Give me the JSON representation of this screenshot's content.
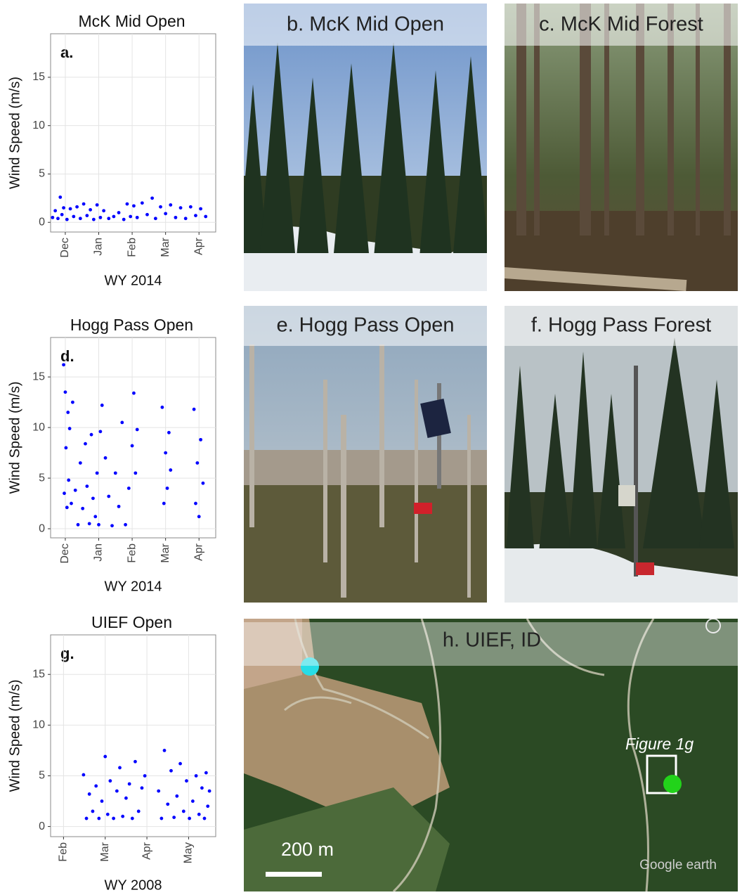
{
  "chart_data": [
    {
      "type": "scatter",
      "title": "McK Mid Open",
      "annotation": "a.",
      "ylabel": "Wind Speed (m/s)",
      "xlabel": "WY 2014",
      "x": [
        0.62,
        0.7,
        0.78,
        0.85,
        0.9,
        0.95,
        1.05,
        1.15,
        1.25,
        1.35,
        1.45,
        1.55,
        1.65,
        1.75,
        1.85,
        1.95,
        2.05,
        2.15,
        2.3,
        2.45,
        2.6,
        2.75,
        2.85,
        2.95,
        3.05,
        3.15,
        3.3,
        3.45,
        3.6,
        3.7,
        3.85,
        4.0,
        4.15,
        4.3,
        4.45,
        4.6,
        4.75,
        4.9,
        5.05,
        5.2
      ],
      "values": [
        0.5,
        1.2,
        0.4,
        2.6,
        0.8,
        1.5,
        0.3,
        1.4,
        0.6,
        1.6,
        0.4,
        1.9,
        0.7,
        1.3,
        0.3,
        1.8,
        0.5,
        1.2,
        0.4,
        0.6,
        1.0,
        0.3,
        1.9,
        0.6,
        1.7,
        0.5,
        2.0,
        0.8,
        2.5,
        0.4,
        1.6,
        0.9,
        1.8,
        0.5,
        1.5,
        0.4,
        1.6,
        0.7,
        1.4,
        0.6
      ],
      "color": "#0000ff",
      "xlim": [
        0.56,
        5.5
      ],
      "ylim": [
        -1,
        19.5
      ],
      "xticks": [
        {
          "value": 1,
          "label": "Dec"
        },
        {
          "value": 2,
          "label": "Jan"
        },
        {
          "value": 3,
          "label": "Feb"
        },
        {
          "value": 4,
          "label": "Mar"
        },
        {
          "value": 5,
          "label": "Apr"
        }
      ],
      "yticks": [
        0,
        5,
        10,
        15
      ],
      "grid": true
    },
    {
      "type": "scatter",
      "title": "Hogg Pass Open",
      "annotation": "d.",
      "ylabel": "Wind Speed (m/s)",
      "xlabel": "WY 2014",
      "x": [
        0.95,
        0.97,
        1.0,
        1.02,
        1.05,
        1.08,
        1.1,
        1.13,
        1.18,
        1.22,
        1.3,
        1.38,
        1.45,
        1.52,
        1.6,
        1.65,
        1.72,
        1.78,
        1.83,
        1.9,
        1.95,
        2.0,
        2.05,
        2.1,
        2.2,
        2.3,
        2.4,
        2.5,
        2.6,
        2.7,
        2.8,
        2.9,
        3.0,
        3.05,
        3.1,
        3.15,
        3.9,
        3.95,
        4.0,
        4.05,
        4.1,
        4.15,
        4.85,
        4.9,
        4.95,
        5.0,
        5.05,
        5.12
      ],
      "values": [
        16.2,
        3.5,
        13.5,
        8.0,
        2.1,
        11.5,
        4.8,
        9.9,
        2.5,
        12.5,
        3.8,
        0.4,
        6.5,
        2.0,
        8.4,
        4.2,
        0.5,
        9.3,
        3.0,
        1.2,
        5.5,
        0.4,
        9.6,
        12.2,
        7.0,
        3.2,
        0.3,
        5.5,
        2.2,
        10.5,
        0.4,
        4.0,
        8.2,
        13.4,
        5.5,
        9.8,
        12.0,
        2.5,
        7.5,
        4.0,
        9.5,
        5.8,
        11.8,
        2.5,
        6.5,
        1.2,
        8.8,
        4.5
      ],
      "color": "#0000ff",
      "xlim": [
        0.56,
        5.5
      ],
      "ylim": [
        -0.9,
        18.9
      ],
      "xticks": [
        {
          "value": 1,
          "label": "Dec"
        },
        {
          "value": 2,
          "label": "Jan"
        },
        {
          "value": 3,
          "label": "Feb"
        },
        {
          "value": 4,
          "label": "Mar"
        },
        {
          "value": 5,
          "label": "Apr"
        }
      ],
      "yticks": [
        0,
        5,
        10,
        15
      ],
      "grid": true
    },
    {
      "type": "scatter",
      "title": "UIEF Open",
      "annotation": "g.",
      "ylabel": "Wind Speed (m/s)",
      "xlabel": "WY 2008",
      "x": [
        1.48,
        1.55,
        1.62,
        1.7,
        1.78,
        1.85,
        1.92,
        2.0,
        2.06,
        2.12,
        2.2,
        2.28,
        2.35,
        2.42,
        2.5,
        2.58,
        2.65,
        2.72,
        2.8,
        2.88,
        2.95,
        3.28,
        3.35,
        3.42,
        3.5,
        3.58,
        3.65,
        3.72,
        3.8,
        3.88,
        3.95,
        4.02,
        4.1,
        4.18,
        4.25,
        4.32,
        4.38,
        4.42,
        4.46,
        4.5
      ],
      "values": [
        5.1,
        0.8,
        3.2,
        1.5,
        4.0,
        0.8,
        2.5,
        6.9,
        1.2,
        4.5,
        0.8,
        3.5,
        5.8,
        1.0,
        2.8,
        4.2,
        0.8,
        6.4,
        1.5,
        3.8,
        5.0,
        3.5,
        0.8,
        7.5,
        2.2,
        5.5,
        0.9,
        3.0,
        6.2,
        1.5,
        4.5,
        0.8,
        2.5,
        5.0,
        1.2,
        3.8,
        0.8,
        5.3,
        2.0,
        3.5
      ],
      "color": "#0000ff",
      "xlim": [
        0.69,
        4.65
      ],
      "ylim": [
        -1.0,
        18.9
      ],
      "xticks": [
        {
          "value": 1,
          "label": "Feb"
        },
        {
          "value": 2,
          "label": "Mar"
        },
        {
          "value": 3,
          "label": "Apr"
        },
        {
          "value": 4,
          "label": "May"
        }
      ],
      "yticks": [
        0,
        5,
        10,
        15
      ],
      "grid": true
    }
  ],
  "photos": [
    {
      "label": "b. McK Mid Open"
    },
    {
      "label": "c. McK Mid Forest"
    },
    {
      "label": "e. Hogg Pass Open"
    },
    {
      "label": "f. Hogg Pass Forest"
    }
  ],
  "map": {
    "label": "h. UIEF, ID",
    "annotation": "Figure 1g",
    "scale": "200 m",
    "logo": "Google earth"
  }
}
